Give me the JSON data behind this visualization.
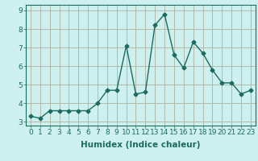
{
  "x": [
    0,
    1,
    2,
    3,
    4,
    5,
    6,
    7,
    8,
    9,
    10,
    11,
    12,
    13,
    14,
    15,
    16,
    17,
    18,
    19,
    20,
    21,
    22,
    23
  ],
  "y": [
    3.3,
    3.2,
    3.6,
    3.6,
    3.6,
    3.6,
    3.6,
    4.0,
    4.7,
    4.7,
    7.1,
    4.5,
    4.6,
    8.2,
    8.8,
    6.6,
    5.9,
    7.3,
    6.7,
    5.8,
    5.1,
    5.1,
    4.5,
    4.7
  ],
  "line_color": "#1a6b60",
  "marker": "D",
  "marker_size": 2.5,
  "line_width": 1.0,
  "bg_color": "#cef0ee",
  "grid_color": "#b0b0a0",
  "xlabel": "Humidex (Indice chaleur)",
  "xlabel_fontsize": 7.5,
  "tick_fontsize": 6.5,
  "ylim": [
    2.8,
    9.3
  ],
  "xlim": [
    -0.5,
    23.5
  ],
  "yticks": [
    3,
    4,
    5,
    6,
    7,
    8,
    9
  ],
  "xticks": [
    0,
    1,
    2,
    3,
    4,
    5,
    6,
    7,
    8,
    9,
    10,
    11,
    12,
    13,
    14,
    15,
    16,
    17,
    18,
    19,
    20,
    21,
    22,
    23
  ]
}
